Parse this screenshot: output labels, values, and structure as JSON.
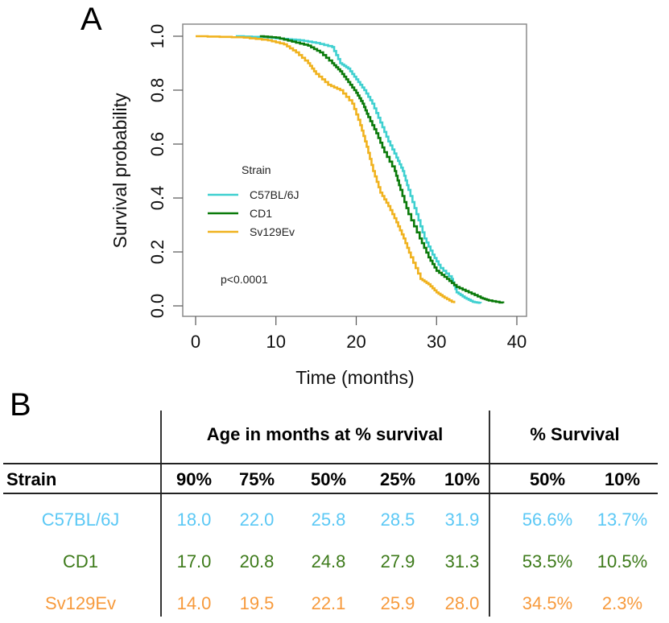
{
  "panels": {
    "a_label": "A",
    "b_label": "B"
  },
  "chart_data": {
    "type": "line",
    "subtype": "kaplan-meier step",
    "title": "",
    "xlabel": "Time (months)",
    "ylabel": "Survival probability",
    "xlim": [
      0,
      40
    ],
    "ylim": [
      0,
      1
    ],
    "xticks": [
      "0",
      "10",
      "20",
      "30",
      "40"
    ],
    "yticks": [
      "0.0",
      "0.2",
      "0.4",
      "0.6",
      "0.8",
      "1.0"
    ],
    "grid": false,
    "legend": {
      "title": "Strain",
      "placement": "center-left"
    },
    "annotation": "p<0.0001",
    "series": [
      {
        "name": "C57BL/6J",
        "color": "#3fd0d0",
        "points": [
          [
            5,
            1.0
          ],
          [
            9,
            0.995
          ],
          [
            11,
            0.99
          ],
          [
            13,
            0.985
          ],
          [
            15,
            0.975
          ],
          [
            17,
            0.96
          ],
          [
            18,
            0.9
          ],
          [
            19,
            0.88
          ],
          [
            20,
            0.84
          ],
          [
            21,
            0.8
          ],
          [
            22,
            0.75
          ],
          [
            23,
            0.68
          ],
          [
            24,
            0.61
          ],
          [
            25,
            0.55
          ],
          [
            25.8,
            0.5
          ],
          [
            26.5,
            0.43
          ],
          [
            27.5,
            0.34
          ],
          [
            28.5,
            0.25
          ],
          [
            29.5,
            0.19
          ],
          [
            30.5,
            0.14
          ],
          [
            31.9,
            0.1
          ],
          [
            32.5,
            0.05
          ],
          [
            33.5,
            0.03
          ],
          [
            34.5,
            0.015
          ],
          [
            35.5,
            0.01
          ]
        ]
      },
      {
        "name": "CD1",
        "color": "#0a7a0a",
        "points": [
          [
            8,
            1.0
          ],
          [
            10,
            0.995
          ],
          [
            12,
            0.98
          ],
          [
            14,
            0.965
          ],
          [
            15.5,
            0.94
          ],
          [
            17,
            0.9
          ],
          [
            18,
            0.87
          ],
          [
            19,
            0.83
          ],
          [
            20,
            0.79
          ],
          [
            20.8,
            0.75
          ],
          [
            21.5,
            0.7
          ],
          [
            22.5,
            0.64
          ],
          [
            23.5,
            0.57
          ],
          [
            24.8,
            0.5
          ],
          [
            25.5,
            0.43
          ],
          [
            26.5,
            0.34
          ],
          [
            27.9,
            0.25
          ],
          [
            29,
            0.18
          ],
          [
            30,
            0.13
          ],
          [
            31.3,
            0.1
          ],
          [
            32.5,
            0.07
          ],
          [
            34,
            0.05
          ],
          [
            35.5,
            0.03
          ],
          [
            36.5,
            0.02
          ],
          [
            38.3,
            0.01
          ]
        ]
      },
      {
        "name": "Sv129Ev",
        "color": "#f0b21e",
        "points": [
          [
            0,
            1.0
          ],
          [
            6,
            0.995
          ],
          [
            9,
            0.985
          ],
          [
            11,
            0.97
          ],
          [
            12.5,
            0.94
          ],
          [
            14,
            0.9
          ],
          [
            15,
            0.86
          ],
          [
            16.5,
            0.82
          ],
          [
            18,
            0.8
          ],
          [
            19.5,
            0.75
          ],
          [
            20.5,
            0.67
          ],
          [
            21.3,
            0.59
          ],
          [
            22.1,
            0.5
          ],
          [
            23,
            0.42
          ],
          [
            24,
            0.37
          ],
          [
            25,
            0.31
          ],
          [
            25.9,
            0.25
          ],
          [
            26.8,
            0.18
          ],
          [
            28,
            0.1
          ],
          [
            29,
            0.08
          ],
          [
            30,
            0.05
          ],
          [
            31,
            0.03
          ],
          [
            32.2,
            0.01
          ]
        ]
      }
    ]
  },
  "table": {
    "group_headers": [
      "Age in months at % survival",
      "% Survival"
    ],
    "strain_header": "Strain",
    "age_columns": [
      "90%",
      "75%",
      "50%",
      "25%",
      "10%"
    ],
    "survival_columns": [
      "50%",
      "10%"
    ],
    "rows": [
      {
        "strain": "C57BL/6J",
        "color": "#5bc8f5",
        "ages": [
          "18.0",
          "22.0",
          "25.8",
          "28.5",
          "31.9"
        ],
        "survival": [
          "56.6%",
          "13.7%"
        ]
      },
      {
        "strain": "CD1",
        "color": "#3d7a1a",
        "ages": [
          "17.0",
          "20.8",
          "24.8",
          "27.9",
          "31.3"
        ],
        "survival": [
          "53.5%",
          "10.5%"
        ]
      },
      {
        "strain": "Sv129Ev",
        "color": "#f79a3c",
        "ages": [
          "14.0",
          "19.5",
          "22.1",
          "25.9",
          "28.0"
        ],
        "survival": [
          "34.5%",
          "2.3%"
        ]
      }
    ]
  }
}
